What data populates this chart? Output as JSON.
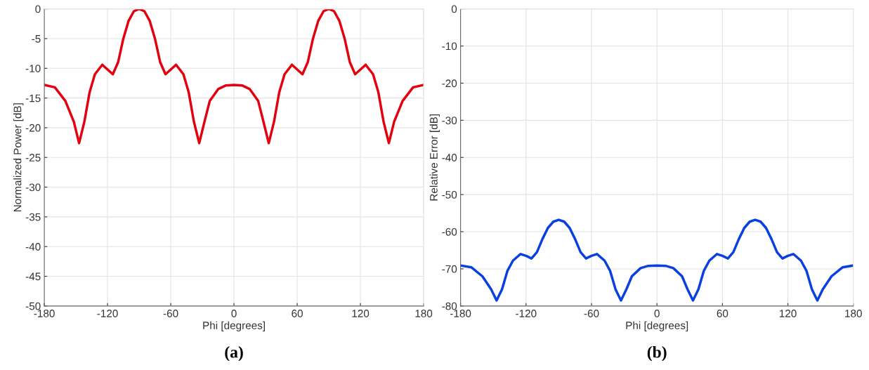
{
  "chart_data": [
    {
      "type": "line",
      "xlabel": "Phi [degrees]",
      "ylabel": "Normalized Power [dB]",
      "annotations": [
        "(a)"
      ],
      "grid": true,
      "xlim": [
        -180,
        180
      ],
      "ylim": [
        -50,
        0
      ],
      "xticks": [
        -180,
        -120,
        -60,
        0,
        60,
        120,
        180
      ],
      "yticks": [
        -50,
        -45,
        -40,
        -35,
        -30,
        -25,
        -20,
        -15,
        -10,
        -5,
        0
      ],
      "x": [
        -180,
        -170,
        -160,
        -152,
        -147,
        -142,
        -137,
        -132,
        -125,
        -120,
        -115,
        -110,
        -105,
        -100,
        -95,
        -90,
        -85,
        -80,
        -75,
        -70,
        -65,
        -60,
        -55,
        -48,
        -43,
        -38,
        -33,
        -28,
        -23,
        -15,
        -8,
        0,
        8,
        15,
        23,
        28,
        33,
        38,
        43,
        48,
        55,
        60,
        65,
        70,
        75,
        80,
        85,
        90,
        95,
        100,
        105,
        110,
        115,
        120,
        125,
        132,
        137,
        142,
        147,
        152,
        160,
        170,
        180
      ],
      "series": [
        {
          "color": "#e3000f",
          "values": [
            -12.8,
            -13.2,
            -15.5,
            -19,
            -22.6,
            -19,
            -14,
            -11,
            -9.4,
            -10.2,
            -11,
            -9,
            -5,
            -2,
            -0.4,
            0,
            -0.4,
            -2,
            -5,
            -9,
            -11,
            -10.2,
            -9.4,
            -11,
            -14,
            -19,
            -22.6,
            -19,
            -15.5,
            -13.5,
            -12.9,
            -12.8,
            -12.9,
            -13.5,
            -15.5,
            -19,
            -22.6,
            -19,
            -14,
            -11,
            -9.4,
            -10.2,
            -11,
            -9,
            -5,
            -2,
            -0.4,
            0,
            -0.4,
            -2,
            -5,
            -9,
            -11,
            -10.2,
            -9.4,
            -11,
            -14,
            -19,
            -22.6,
            -19,
            -15.5,
            -13.2,
            -12.8
          ]
        }
      ]
    },
    {
      "type": "line",
      "xlabel": "Phi [degrees]",
      "ylabel": "Relative Error [dB]",
      "annotations": [
        "(b)"
      ],
      "grid": true,
      "xlim": [
        -180,
        180
      ],
      "ylim": [
        -80,
        0
      ],
      "xticks": [
        -180,
        -120,
        -60,
        0,
        60,
        120,
        180
      ],
      "yticks": [
        -80,
        -70,
        -60,
        -50,
        -40,
        -30,
        -20,
        -10,
        0
      ],
      "x": [
        -180,
        -170,
        -160,
        -152,
        -147,
        -142,
        -137,
        -132,
        -125,
        -120,
        -115,
        -110,
        -105,
        -100,
        -95,
        -90,
        -85,
        -80,
        -75,
        -70,
        -65,
        -60,
        -55,
        -48,
        -43,
        -38,
        -33,
        -28,
        -23,
        -15,
        -8,
        0,
        8,
        15,
        23,
        28,
        33,
        38,
        43,
        48,
        55,
        60,
        65,
        70,
        75,
        80,
        85,
        90,
        95,
        100,
        105,
        110,
        115,
        120,
        125,
        132,
        137,
        142,
        147,
        152,
        160,
        170,
        180
      ],
      "series": [
        {
          "color": "#0a3fe0",
          "values": [
            -69.1,
            -69.6,
            -72,
            -75.5,
            -78.5,
            -75.5,
            -70.5,
            -67.8,
            -66,
            -66.5,
            -67.2,
            -65.5,
            -62,
            -59,
            -57.3,
            -56.8,
            -57.3,
            -59,
            -62,
            -65.5,
            -67.2,
            -66.5,
            -66,
            -67.8,
            -70.5,
            -75.5,
            -78.5,
            -75.5,
            -72,
            -69.8,
            -69.2,
            -69.1,
            -69.2,
            -69.8,
            -72,
            -75.5,
            -78.5,
            -75.5,
            -70.5,
            -67.8,
            -66,
            -66.5,
            -67.2,
            -65.5,
            -62,
            -59,
            -57.3,
            -56.8,
            -57.3,
            -59,
            -62,
            -65.5,
            -67.2,
            -66.5,
            -66,
            -67.8,
            -70.5,
            -75.5,
            -78.5,
            -75.5,
            -72,
            -69.6,
            -69.1
          ]
        }
      ]
    }
  ]
}
